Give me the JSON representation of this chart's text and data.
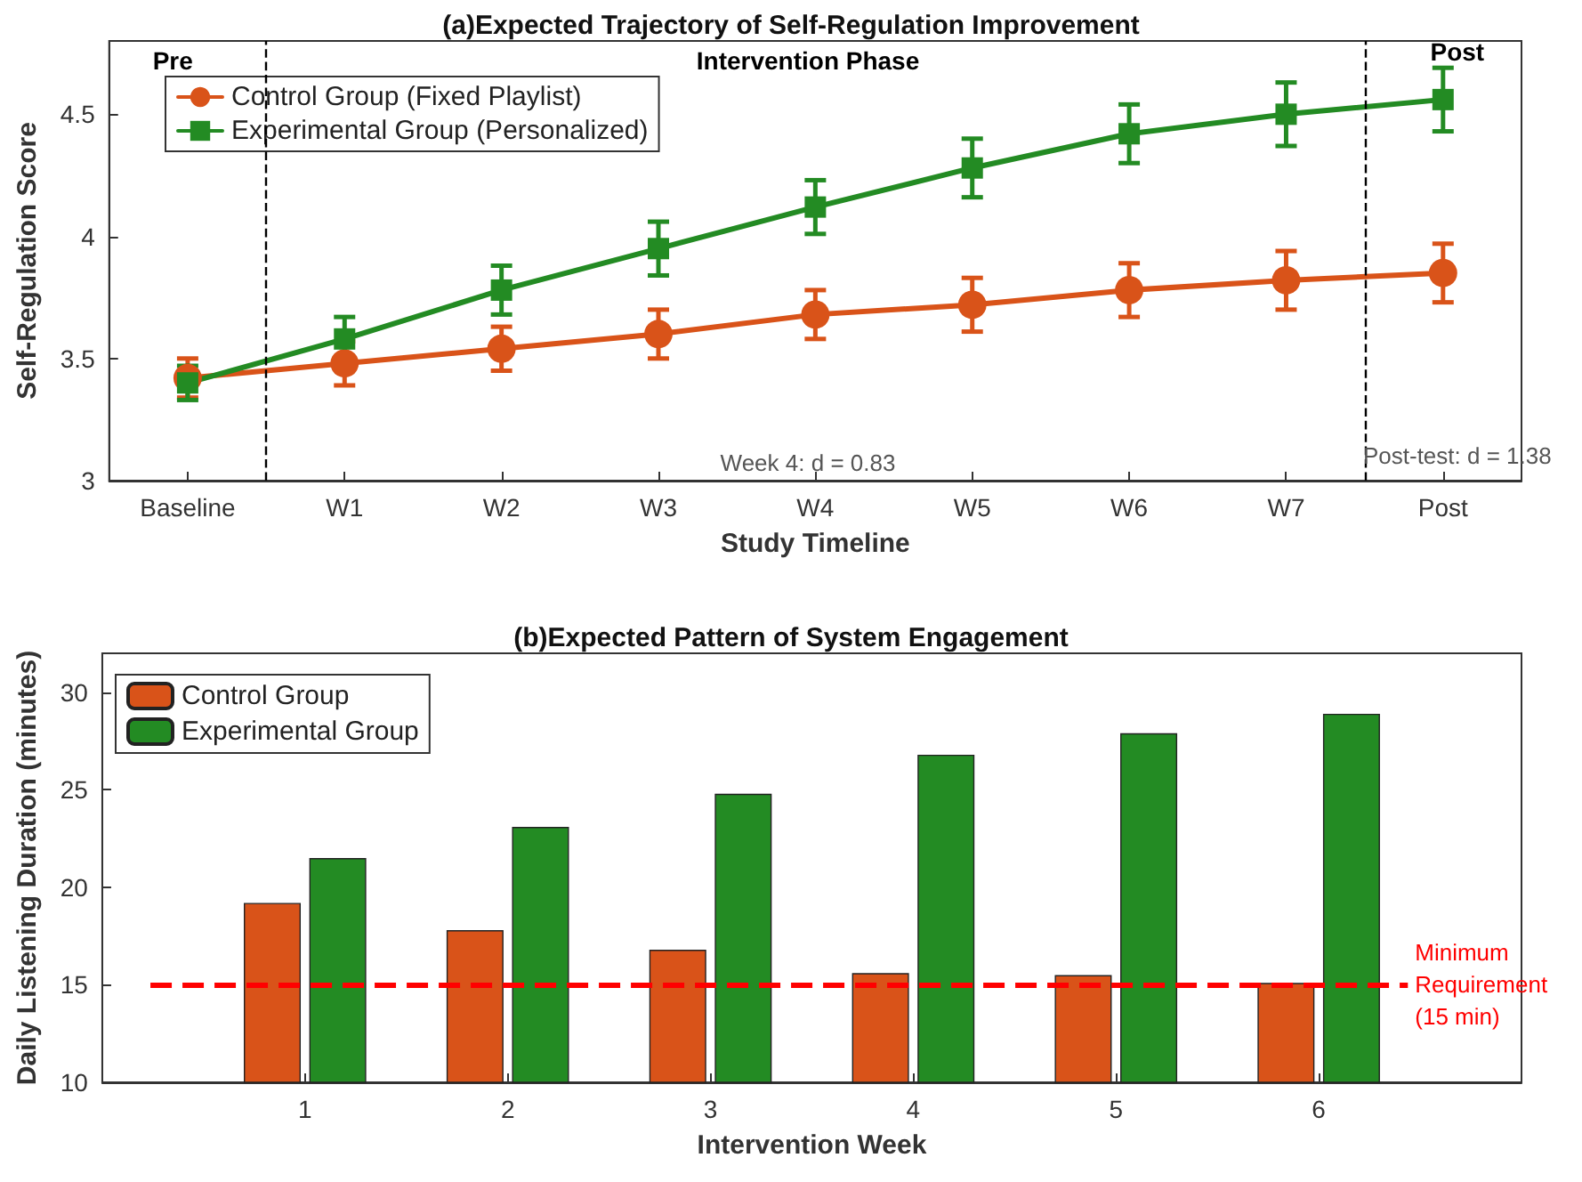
{
  "chart_data": [
    {
      "type": "line",
      "title": "(a)Expected Trajectory of Self-Regulation Improvement",
      "xlabel": "Study Timeline",
      "ylabel": "Self-Regulation Score",
      "categories": [
        "Baseline",
        "W1",
        "W2",
        "W3",
        "W4",
        "W5",
        "W6",
        "W7",
        "Post"
      ],
      "ylim": [
        3,
        4.8
      ],
      "yticks": [
        3,
        3.5,
        4,
        4.5
      ],
      "series": [
        {
          "name": "Control Group (Fixed Playlist)",
          "color": "#d95319",
          "marker": "circle",
          "values": [
            3.42,
            3.48,
            3.54,
            3.6,
            3.68,
            3.72,
            3.78,
            3.82,
            3.85
          ],
          "errors": [
            0.08,
            0.09,
            0.09,
            0.1,
            0.1,
            0.11,
            0.11,
            0.12,
            0.12
          ]
        },
        {
          "name": "Experimental Group (Personalized)",
          "color": "#238b23",
          "marker": "square",
          "values": [
            3.4,
            3.58,
            3.78,
            3.95,
            4.12,
            4.28,
            4.42,
            4.5,
            4.56
          ],
          "errors": [
            0.07,
            0.09,
            0.1,
            0.11,
            0.11,
            0.12,
            0.12,
            0.13,
            0.13
          ]
        }
      ],
      "annotations": [
        "Pre",
        "Intervention Phase",
        "Post",
        "Week 4: d = 0.83",
        "Post-test: d = 1.38"
      ],
      "legend": "top left",
      "grid": false,
      "line_style": "solid"
    },
    {
      "type": "bar",
      "title": "(b)Expected Pattern of System Engagement",
      "xlabel": "Intervention Week",
      "ylabel": "Daily Listening Duration (minutes)",
      "x": [
        1,
        2,
        3,
        4,
        5,
        6
      ],
      "xlim": [
        0,
        7
      ],
      "xticks": [
        1,
        2,
        3,
        4,
        5,
        6
      ],
      "ylim": [
        10,
        32
      ],
      "yticks": [
        10,
        15,
        20,
        25,
        30
      ],
      "series": [
        {
          "name": "Control Group",
          "color": "#d95319",
          "values": [
            19.2,
            17.8,
            16.8,
            15.6,
            15.5,
            15.1
          ]
        },
        {
          "name": "Experimental Group",
          "color": "#238b23",
          "values": [
            21.5,
            23.1,
            24.8,
            26.8,
            27.9,
            28.9
          ]
        }
      ],
      "ref_lines": [
        {
          "axis": "y",
          "value": 15,
          "label": "Minimum\nRequirement\n(15 min)",
          "color": "#ff0000",
          "line_style": "dashed"
        }
      ],
      "legend": "top left",
      "grid": false
    }
  ]
}
